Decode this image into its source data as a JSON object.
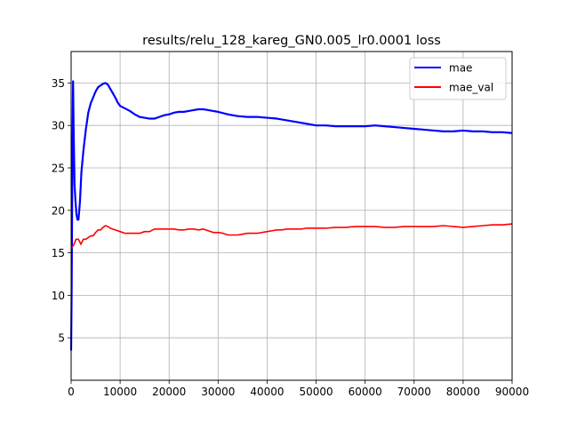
{
  "chart_data": {
    "type": "line",
    "title": "results/relu_128_kareg_GN0.005_lr0.0001 loss",
    "xlabel": "",
    "ylabel": "",
    "xlim": [
      0,
      90000
    ],
    "ylim": [
      0,
      38.7
    ],
    "grid": true,
    "legend_position": "top-right",
    "xticks": [
      0,
      10000,
      20000,
      30000,
      40000,
      50000,
      60000,
      70000,
      80000,
      90000
    ],
    "xtick_labels": [
      "0",
      "10000",
      "20000",
      "30000",
      "40000",
      "50000",
      "60000",
      "70000",
      "80000",
      "90000"
    ],
    "yticks": [
      5,
      10,
      15,
      20,
      25,
      30,
      35
    ],
    "ytick_labels": [
      "5",
      "10",
      "15",
      "20",
      "25",
      "30",
      "35"
    ],
    "series": [
      {
        "name": "mae",
        "color": "#0000ff",
        "x": [
          0,
          100,
          200,
          300,
          400,
          500,
          700,
          900,
          1100,
          1300,
          1500,
          1800,
          2100,
          2500,
          3000,
          3500,
          4000,
          4500,
          5000,
          5500,
          6000,
          6500,
          7000,
          7500,
          8000,
          8500,
          9000,
          9500,
          10000,
          11000,
          12000,
          13000,
          14000,
          15000,
          16000,
          17000,
          18000,
          19000,
          20000,
          21000,
          22000,
          23000,
          24000,
          25000,
          26000,
          27000,
          28000,
          29000,
          30000,
          32000,
          34000,
          36000,
          38000,
          40000,
          42000,
          44000,
          46000,
          48000,
          50000,
          52000,
          54000,
          56000,
          58000,
          60000,
          62000,
          64000,
          66000,
          68000,
          70000,
          72000,
          74000,
          76000,
          78000,
          80000,
          82000,
          84000,
          86000,
          88000,
          90000
        ],
        "y": [
          3.5,
          10.0,
          20.0,
          29.0,
          35.2,
          30.0,
          23.0,
          21.0,
          19.5,
          18.9,
          18.9,
          21.0,
          24.5,
          27.0,
          29.5,
          31.5,
          32.6,
          33.3,
          34.0,
          34.5,
          34.7,
          34.9,
          35.0,
          34.8,
          34.3,
          33.8,
          33.3,
          32.7,
          32.3,
          32.0,
          31.7,
          31.3,
          31.0,
          30.9,
          30.8,
          30.8,
          31.0,
          31.2,
          31.3,
          31.5,
          31.6,
          31.6,
          31.7,
          31.8,
          31.9,
          31.9,
          31.8,
          31.7,
          31.6,
          31.3,
          31.1,
          31.0,
          31.0,
          30.9,
          30.8,
          30.6,
          30.4,
          30.2,
          30.0,
          30.0,
          29.9,
          29.9,
          29.9,
          29.9,
          30.0,
          29.9,
          29.8,
          29.7,
          29.6,
          29.5,
          29.4,
          29.3,
          29.3,
          29.4,
          29.3,
          29.3,
          29.2,
          29.2,
          29.1
        ]
      },
      {
        "name": "mae_val",
        "color": "#ff0000",
        "x": [
          0,
          500,
          1000,
          1500,
          2000,
          2500,
          3000,
          3500,
          4000,
          4500,
          5000,
          5500,
          6000,
          6500,
          7000,
          7500,
          8000,
          8500,
          9000,
          10000,
          11000,
          12000,
          13000,
          14000,
          15000,
          16000,
          17000,
          18000,
          19000,
          20000,
          21000,
          22000,
          23000,
          24000,
          25000,
          26000,
          27000,
          28000,
          29000,
          30000,
          31000,
          32000,
          33000,
          34000,
          35000,
          36000,
          37000,
          38000,
          39000,
          40000,
          41000,
          42000,
          43000,
          44000,
          45000,
          46000,
          47000,
          48000,
          49000,
          50000,
          52000,
          54000,
          56000,
          58000,
          60000,
          62000,
          64000,
          66000,
          68000,
          70000,
          72000,
          74000,
          76000,
          78000,
          80000,
          82000,
          84000,
          86000,
          88000,
          90000
        ],
        "y": [
          15.5,
          15.9,
          16.6,
          16.6,
          16.0,
          16.6,
          16.6,
          16.8,
          17.0,
          17.0,
          17.4,
          17.7,
          17.7,
          18.0,
          18.2,
          18.1,
          17.9,
          17.8,
          17.7,
          17.5,
          17.3,
          17.3,
          17.3,
          17.3,
          17.5,
          17.5,
          17.8,
          17.8,
          17.8,
          17.8,
          17.8,
          17.7,
          17.7,
          17.8,
          17.8,
          17.7,
          17.8,
          17.6,
          17.4,
          17.4,
          17.3,
          17.1,
          17.1,
          17.1,
          17.2,
          17.3,
          17.3,
          17.3,
          17.4,
          17.5,
          17.6,
          17.7,
          17.7,
          17.8,
          17.8,
          17.8,
          17.8,
          17.9,
          17.9,
          17.9,
          17.9,
          18.0,
          18.0,
          18.1,
          18.1,
          18.1,
          18.0,
          18.0,
          18.1,
          18.1,
          18.1,
          18.1,
          18.2,
          18.1,
          18.0,
          18.1,
          18.2,
          18.3,
          18.3,
          18.4
        ]
      }
    ]
  }
}
